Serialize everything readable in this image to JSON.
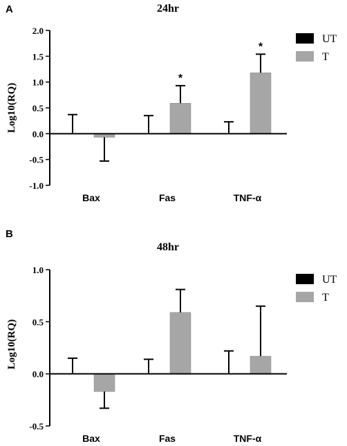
{
  "chart_data": [
    {
      "type": "bar",
      "panel_label": "A",
      "title": "24hr",
      "ylabel": "Log10(RQ)",
      "xlabel": "",
      "categories": [
        "Bax",
        "Fas",
        "TNF-α"
      ],
      "ylim": [
        -1.0,
        2.0
      ],
      "yticks": [
        -1.0,
        -0.5,
        0.0,
        0.5,
        1.0,
        1.5,
        2.0
      ],
      "ytick_labels": [
        "-1.0",
        "-0.5",
        "0.0",
        "0.5",
        "1.0",
        "1.5",
        "2.0"
      ],
      "grid": false,
      "legend_position": "top-right",
      "series": [
        {
          "name": "UT",
          "color": "#000000",
          "values": [
            0.0,
            0.0,
            0.0
          ],
          "error": [
            0.37,
            0.35,
            0.23
          ]
        },
        {
          "name": "T",
          "color": "#a6a6a6",
          "values": [
            -0.07,
            0.59,
            1.18
          ],
          "error": [
            0.46,
            0.34,
            0.36
          ]
        }
      ],
      "annotations": [
        {
          "category": "Fas",
          "series": "T",
          "text": "*"
        },
        {
          "category": "TNF-α",
          "series": "T",
          "text": "*"
        }
      ]
    },
    {
      "type": "bar",
      "panel_label": "B",
      "title": "48hr",
      "ylabel": "Log10(RQ)",
      "xlabel": "",
      "categories": [
        "Bax",
        "Fas",
        "TNF-α"
      ],
      "ylim": [
        -0.5,
        1.0
      ],
      "yticks": [
        -0.5,
        0.0,
        0.5,
        1.0
      ],
      "ytick_labels": [
        "-0.5",
        "0.0",
        "0.5",
        "1.0"
      ],
      "grid": false,
      "legend_position": "top-right",
      "series": [
        {
          "name": "UT",
          "color": "#000000",
          "values": [
            0.0,
            0.0,
            0.0
          ],
          "error": [
            0.15,
            0.14,
            0.22
          ]
        },
        {
          "name": "T",
          "color": "#a6a6a6",
          "values": [
            -0.17,
            0.59,
            0.17
          ],
          "error": [
            0.16,
            0.22,
            0.48
          ]
        }
      ],
      "annotations": []
    }
  ]
}
